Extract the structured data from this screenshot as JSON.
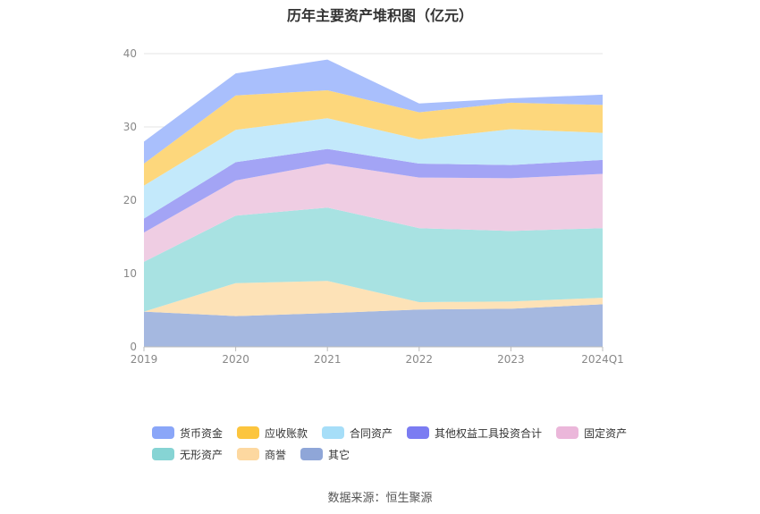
{
  "chart_data": {
    "type": "area",
    "stacked": true,
    "title": "历年主要资产堆积图（亿元）",
    "categories": [
      "2019",
      "2020",
      "2021",
      "2022",
      "2023",
      "2024Q1"
    ],
    "ylim": [
      0,
      40
    ],
    "yticks": [
      "0",
      "10",
      "20",
      "30",
      "40"
    ],
    "grid": true,
    "legend_position": "bottom",
    "series": [
      {
        "name": "其它",
        "color": "#a5b8e0",
        "values": [
          4.8,
          4.2,
          4.6,
          5.1,
          5.2,
          5.8
        ]
      },
      {
        "name": "商誉",
        "color": "#fde2b7",
        "values": [
          0.0,
          4.5,
          4.4,
          1.0,
          1.0,
          0.9
        ]
      },
      {
        "name": "无形资产",
        "color": "#a8e2e2",
        "values": [
          6.8,
          9.2,
          10.0,
          10.1,
          9.6,
          9.5
        ]
      },
      {
        "name": "固定资产",
        "color": "#efcde3",
        "values": [
          4.0,
          4.8,
          6.0,
          6.9,
          7.2,
          7.4
        ]
      },
      {
        "name": "其他权益工具投资合计",
        "color": "#a3a4f5",
        "values": [
          1.9,
          2.5,
          2.0,
          1.9,
          1.8,
          1.9
        ]
      },
      {
        "name": "合同资产",
        "color": "#c3e9fb",
        "values": [
          4.5,
          4.4,
          4.2,
          3.3,
          4.9,
          3.7
        ]
      },
      {
        "name": "应收账款",
        "color": "#fdd77c",
        "values": [
          3.0,
          4.7,
          3.8,
          3.7,
          3.6,
          3.8
        ]
      },
      {
        "name": "货币资金",
        "color": "#a9bffc",
        "values": [
          3.0,
          3.0,
          4.2,
          1.2,
          0.6,
          1.4
        ]
      }
    ],
    "source": "数据来源：恒生聚源"
  },
  "legend": {
    "rows": [
      [
        {
          "label": "货币资金",
          "color": "#8aa6f8"
        },
        {
          "label": "应收账款",
          "color": "#fcc53e"
        },
        {
          "label": "合同资产",
          "color": "#a6def8"
        },
        {
          "label": "其他权益工具投资合计",
          "color": "#7b7cf2"
        },
        {
          "label": "固定资产",
          "color": "#ebb7da"
        }
      ],
      [
        {
          "label": "无形资产",
          "color": "#86d4d4"
        },
        {
          "label": "商誉",
          "color": "#fdd8a0"
        },
        {
          "label": "其它",
          "color": "#8fa6d8"
        }
      ]
    ]
  }
}
